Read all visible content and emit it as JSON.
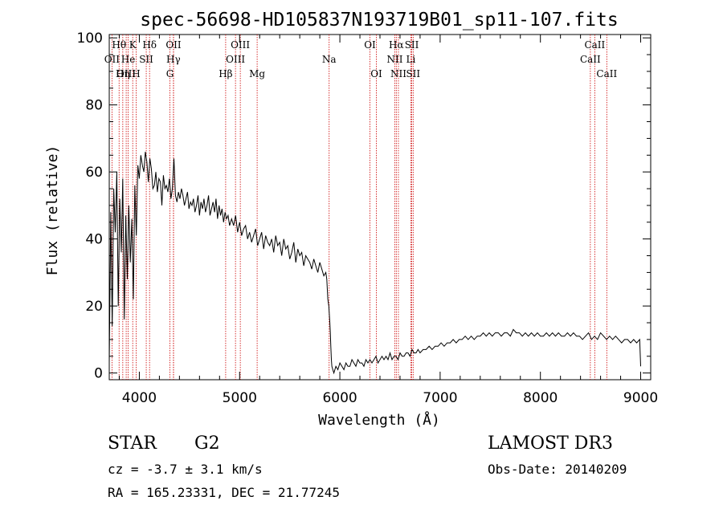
{
  "chart_data": {
    "type": "line",
    "title": "spec-56698-HD105837N193719B01_sp11-107.fits",
    "xlabel": "Wavelength (Å)",
    "ylabel": "Flux (relative)",
    "xlim": [
      3700,
      9100
    ],
    "ylim": [
      -2,
      101
    ],
    "xticks": [
      4000,
      5000,
      6000,
      7000,
      8000,
      9000
    ],
    "yticks": [
      0,
      20,
      40,
      60,
      80,
      100
    ],
    "grid": false,
    "line_color": "#000000",
    "marker_color": "#cc0000",
    "series": [
      {
        "x": [
          3700,
          3715,
          3730,
          3745,
          3760,
          3775,
          3790,
          3805,
          3820,
          3835,
          3850,
          3865,
          3880,
          3895,
          3910,
          3925,
          3940,
          3955,
          3970,
          3985,
          4000,
          4015,
          4030,
          4045,
          4060,
          4075,
          4090,
          4105,
          4120,
          4135,
          4150,
          4165,
          4180,
          4195,
          4210,
          4225,
          4240,
          4255,
          4270,
          4285,
          4300,
          4315,
          4330,
          4345,
          4360,
          4375,
          4390,
          4405,
          4420,
          4435,
          4450,
          4465,
          4480,
          4495,
          4510,
          4525,
          4540,
          4555,
          4570,
          4585,
          4600,
          4615,
          4630,
          4645,
          4660,
          4675,
          4690,
          4705,
          4720,
          4735,
          4750,
          4765,
          4780,
          4795,
          4810,
          4825,
          4840,
          4855,
          4870,
          4885,
          4900,
          4920,
          4940,
          4960,
          4980,
          5000,
          5020,
          5040,
          5060,
          5080,
          5100,
          5120,
          5140,
          5160,
          5180,
          5200,
          5220,
          5240,
          5260,
          5280,
          5300,
          5320,
          5340,
          5360,
          5380,
          5400,
          5420,
          5440,
          5460,
          5480,
          5500,
          5520,
          5540,
          5560,
          5580,
          5600,
          5620,
          5640,
          5660,
          5680,
          5700,
          5720,
          5740,
          5760,
          5780,
          5800,
          5820,
          5840,
          5860,
          5870,
          5880,
          5890,
          5900,
          5905,
          5910,
          5915,
          5920,
          5930,
          5940,
          5960,
          5980,
          6000,
          6020,
          6040,
          6060,
          6080,
          6100,
          6120,
          6140,
          6160,
          6180,
          6200,
          6220,
          6240,
          6260,
          6280,
          6300,
          6320,
          6340,
          6360,
          6380,
          6400,
          6420,
          6440,
          6460,
          6480,
          6500,
          6520,
          6540,
          6560,
          6580,
          6600,
          6620,
          6640,
          6660,
          6680,
          6700,
          6720,
          6740,
          6760,
          6780,
          6800,
          6830,
          6860,
          6890,
          6920,
          6950,
          6980,
          7010,
          7040,
          7070,
          7100,
          7130,
          7160,
          7190,
          7220,
          7250,
          7280,
          7310,
          7340,
          7370,
          7400,
          7430,
          7460,
          7490,
          7520,
          7550,
          7580,
          7610,
          7640,
          7670,
          7700,
          7730,
          7760,
          7790,
          7820,
          7850,
          7880,
          7910,
          7940,
          7970,
          8000,
          8030,
          8060,
          8090,
          8120,
          8150,
          8180,
          8210,
          8240,
          8270,
          8300,
          8330,
          8360,
          8390,
          8420,
          8450,
          8480,
          8510,
          8540,
          8570,
          8600,
          8630,
          8660,
          8690,
          8720,
          8750,
          8780,
          8810,
          8840,
          8870,
          8900,
          8930,
          8960,
          8990,
          9000
        ],
        "y": [
          3,
          48,
          14,
          55,
          42,
          60,
          20,
          52,
          36,
          58,
          16,
          47,
          28,
          50,
          33,
          46,
          22,
          56,
          41,
          62,
          58,
          65,
          62,
          60,
          66,
          63,
          57,
          64,
          61,
          55,
          56,
          60,
          54,
          58,
          57,
          50,
          59,
          55,
          56,
          54,
          58,
          52,
          55,
          64,
          53,
          51,
          54,
          52,
          55,
          53,
          50,
          52,
          54,
          49,
          51,
          50,
          52,
          48,
          50,
          53,
          47,
          51,
          49,
          52,
          48,
          50,
          53,
          47,
          49,
          51,
          48,
          52,
          46,
          50,
          47,
          49,
          45,
          48,
          46,
          47,
          44,
          46,
          44,
          47,
          42,
          45,
          41,
          43,
          44,
          40,
          42,
          39,
          41,
          43,
          38,
          40,
          42,
          37,
          41,
          39,
          38,
          40,
          36,
          41,
          38,
          39,
          35,
          40,
          37,
          38,
          34,
          36,
          39,
          33,
          37,
          35,
          36,
          32,
          35,
          34,
          33,
          31,
          34,
          32,
          30,
          33,
          31,
          29,
          30,
          28,
          22,
          20,
          15,
          12,
          8,
          4,
          2,
          1,
          0,
          2,
          1,
          3,
          2,
          1,
          3,
          2,
          2,
          4,
          3,
          2,
          4,
          3,
          3,
          2,
          4,
          3,
          4,
          3,
          4,
          5,
          3,
          4,
          5,
          4,
          5,
          4,
          6,
          4,
          5,
          5,
          4,
          6,
          5,
          5,
          6,
          6,
          5,
          7,
          6,
          6,
          7,
          6,
          7,
          7,
          8,
          7,
          8,
          8,
          9,
          8,
          9,
          9,
          10,
          9,
          10,
          10,
          11,
          10,
          11,
          10,
          11,
          11,
          12,
          11,
          12,
          11,
          12,
          12,
          11,
          12,
          12,
          11,
          13,
          12,
          12,
          11,
          12,
          11,
          12,
          11,
          12,
          11,
          11,
          12,
          11,
          12,
          11,
          12,
          11,
          11,
          12,
          11,
          12,
          11,
          11,
          10,
          11,
          12,
          10,
          11,
          10,
          12,
          11,
          10,
          11,
          10,
          11,
          10,
          9,
          10,
          10,
          9,
          10,
          9,
          10,
          2
        ]
      }
    ],
    "spectral_lines": [
      {
        "label": "Hθ",
        "x": 3798,
        "row": 0
      },
      {
        "label": "K",
        "x": 3934,
        "row": 0
      },
      {
        "label": "Hδ",
        "x": 4102,
        "row": 0
      },
      {
        "label": "OII",
        "x": 4341,
        "row": 0
      },
      {
        "label": "OIII",
        "x": 5007,
        "row": 0
      },
      {
        "label": "OI",
        "x": 6300,
        "row": 0
      },
      {
        "label": "Hα",
        "x": 6563,
        "row": 0
      },
      {
        "label": "SII",
        "x": 6717,
        "row": 0
      },
      {
        "label": "CaII",
        "x": 8542,
        "row": 0
      },
      {
        "label": "OII",
        "x": 3727,
        "row": 1
      },
      {
        "label": "He",
        "x": 3889,
        "row": 1
      },
      {
        "label": "SII",
        "x": 4069,
        "row": 1
      },
      {
        "label": "Hγ",
        "x": 4340,
        "row": 1
      },
      {
        "label": "OIII",
        "x": 4959,
        "row": 1
      },
      {
        "label": "Na",
        "x": 5893,
        "row": 1
      },
      {
        "label": "NII",
        "x": 6548,
        "row": 1
      },
      {
        "label": "Li",
        "x": 6708,
        "row": 1
      },
      {
        "label": "CaII",
        "x": 8498,
        "row": 1
      },
      {
        "label": "OIII",
        "x": 3869,
        "row": 2
      },
      {
        "label": "Hη",
        "x": 3835,
        "row": 2
      },
      {
        "label": "H",
        "x": 3968,
        "row": 2
      },
      {
        "label": "G",
        "x": 4305,
        "row": 2
      },
      {
        "label": "Hβ",
        "x": 4861,
        "row": 2
      },
      {
        "label": "Mg",
        "x": 5175,
        "row": 2
      },
      {
        "label": "OI",
        "x": 6364,
        "row": 2
      },
      {
        "label": "NII",
        "x": 6584,
        "row": 2
      },
      {
        "label": "SII",
        "x": 6731,
        "row": 2
      },
      {
        "label": "CaII",
        "x": 8662,
        "row": 2
      }
    ]
  },
  "info": {
    "object_class": "STAR",
    "subclass": "G2",
    "survey": "LAMOST DR3",
    "cz": "cz = -3.7 ± 3.1 km/s",
    "obs_date": "Obs-Date: 20140209",
    "coords": "RA = 165.23331, DEC =  21.77245"
  }
}
